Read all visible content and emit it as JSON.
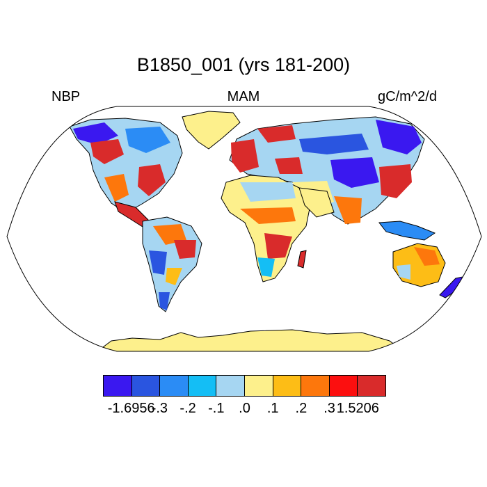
{
  "title": "B1850_001 (yrs 181-200)",
  "left_label": "NBP",
  "center_label": "MAM",
  "right_label": "gC/m^2/d",
  "colorbar": {
    "colors": [
      "#3a18f0",
      "#2a55e0",
      "#2b8cf5",
      "#14bef5",
      "#a6d6f2",
      "#fdf08c",
      "#fdbd16",
      "#fd770c",
      "#fc0f0f",
      "#d92b2b"
    ],
    "labels": [
      "-1.6956",
      "-.3",
      "-.2",
      "-.1",
      ".0",
      ".1",
      ".2",
      ".3",
      "1.5206"
    ]
  }
}
